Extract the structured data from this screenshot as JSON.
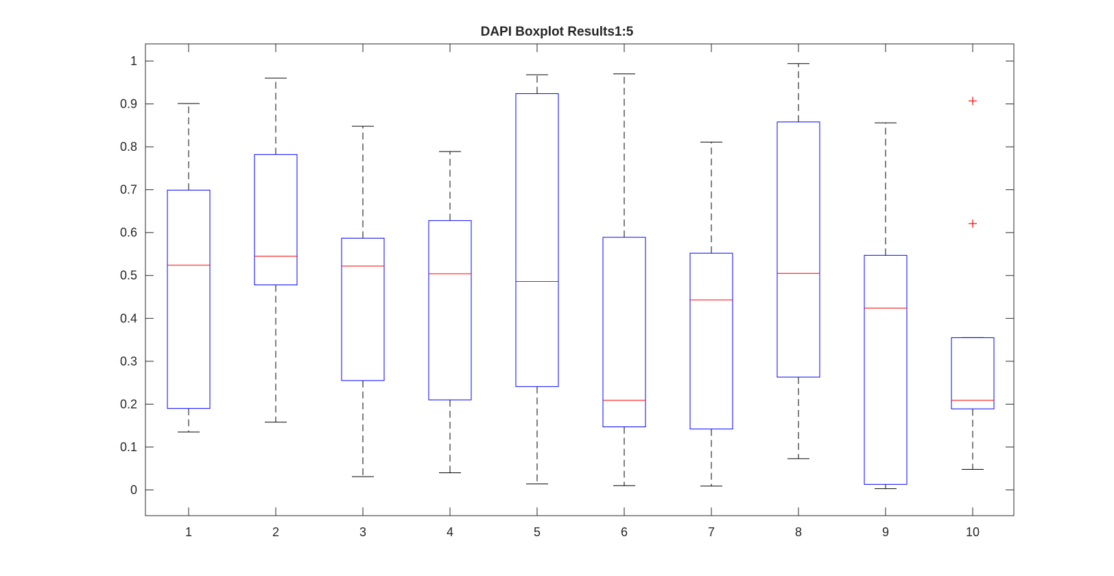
{
  "chart_data": {
    "type": "boxplot",
    "title": "DAPI Boxplot Results1:5",
    "xlabel": "",
    "ylabel": "",
    "categories": [
      "1",
      "2",
      "3",
      "4",
      "5",
      "6",
      "7",
      "8",
      "9",
      "10"
    ],
    "ylim": [
      -0.06,
      1.04
    ],
    "yticks": [
      0,
      0.1,
      0.2,
      0.3,
      0.4,
      0.5,
      0.6,
      0.7,
      0.8,
      0.9,
      1
    ],
    "ytick_labels": [
      "0",
      "0.1",
      "0.2",
      "0.3",
      "0.4",
      "0.5",
      "0.6",
      "0.7",
      "0.8",
      "0.9",
      "1"
    ],
    "grid": false,
    "boxes": [
      {
        "category": "1",
        "whisker_low": 0.135,
        "q1": 0.19,
        "median": 0.524,
        "q3": 0.699,
        "whisker_high": 0.901,
        "outliers": []
      },
      {
        "category": "2",
        "whisker_low": 0.158,
        "q1": 0.478,
        "median": 0.545,
        "q3": 0.782,
        "whisker_high": 0.96,
        "outliers": []
      },
      {
        "category": "3",
        "whisker_low": 0.031,
        "q1": 0.255,
        "median": 0.522,
        "q3": 0.587,
        "whisker_high": 0.848,
        "outliers": []
      },
      {
        "category": "4",
        "whisker_low": 0.04,
        "q1": 0.21,
        "median": 0.504,
        "q3": 0.628,
        "whisker_high": 0.789,
        "outliers": []
      },
      {
        "category": "5",
        "whisker_low": 0.014,
        "q1": 0.241,
        "median": 0.486,
        "q3": 0.924,
        "whisker_high": 0.968,
        "outliers": []
      },
      {
        "category": "6",
        "whisker_low": 0.01,
        "q1": 0.147,
        "median": 0.209,
        "q3": 0.589,
        "whisker_high": 0.97,
        "outliers": []
      },
      {
        "category": "7",
        "whisker_low": 0.009,
        "q1": 0.142,
        "median": 0.443,
        "q3": 0.552,
        "whisker_high": 0.811,
        "outliers": []
      },
      {
        "category": "8",
        "whisker_low": 0.073,
        "q1": 0.263,
        "median": 0.505,
        "q3": 0.858,
        "whisker_high": 0.994,
        "outliers": []
      },
      {
        "category": "9",
        "whisker_low": 0.003,
        "q1": 0.013,
        "median": 0.424,
        "q3": 0.547,
        "whisker_high": 0.856,
        "outliers": []
      },
      {
        "category": "10",
        "whisker_low": 0.048,
        "q1": 0.189,
        "median": 0.209,
        "q3": 0.355,
        "whisker_high": 0.355,
        "outliers": [
          0.621,
          0.907
        ]
      }
    ],
    "colors": {
      "box": "#0000ff",
      "median": "#ff0000",
      "whisker": "#000000",
      "outlier": "#ff0000",
      "axis": "#262626"
    }
  }
}
